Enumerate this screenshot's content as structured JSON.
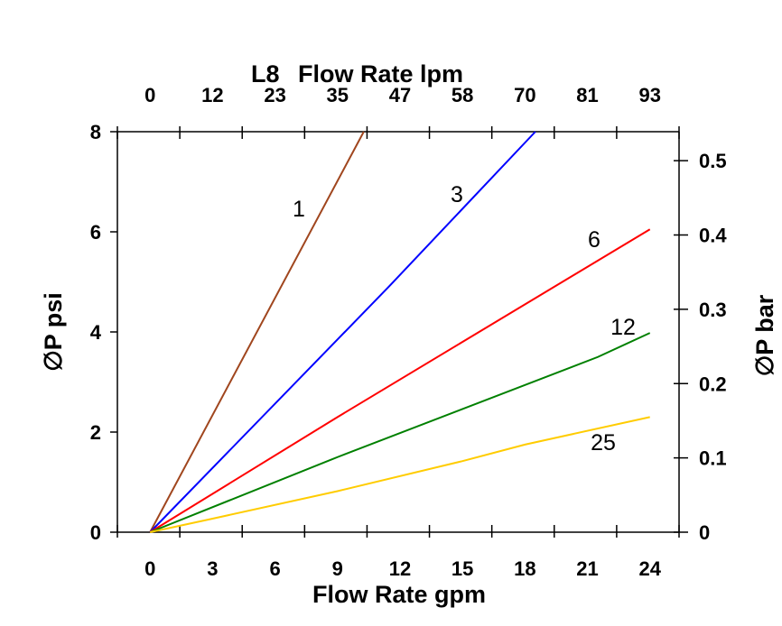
{
  "chart_data": {
    "type": "line",
    "title": "L8",
    "xlabel": "Flow Rate gpm",
    "x2label": "Flow Rate lpm",
    "ylabel": "∅P psi",
    "y2label": "∅P bar",
    "xlim": [
      -1.57,
      25.4
    ],
    "ylim": [
      0,
      8
    ],
    "y2lim": [
      0,
      0.539
    ],
    "x_ticks": [
      "0",
      "3",
      "6",
      "9",
      "12",
      "15",
      "18",
      "21",
      "24"
    ],
    "x_tick_values": [
      0,
      3,
      6,
      9,
      12,
      15,
      18,
      21,
      24
    ],
    "x2_ticks": [
      "0",
      "12",
      "23",
      "35",
      "47",
      "58",
      "70",
      "81",
      "93"
    ],
    "y_ticks": [
      "0",
      "2",
      "4",
      "6",
      "8"
    ],
    "y_tick_values": [
      0,
      2,
      4,
      6,
      8
    ],
    "y2_ticks": [
      "0",
      "0.1",
      "0.2",
      "0.3",
      "0.4",
      "0.5"
    ],
    "y2_tick_values": [
      0,
      0.1,
      0.2,
      0.3,
      0.4,
      0.5
    ],
    "grid": false,
    "series": [
      {
        "name": "1",
        "color": "#a0461e",
        "x": [
          0,
          10.26
        ],
        "y": [
          0,
          8
        ]
      },
      {
        "name": "3",
        "color": "#0000ff",
        "x": [
          0,
          9,
          11.5,
          18.5
        ],
        "y": [
          0,
          3.85,
          4.92,
          8
        ]
      },
      {
        "name": "6",
        "color": "#ff0000",
        "x": [
          0,
          9,
          24
        ],
        "y": [
          0,
          2.3,
          6.05
        ]
      },
      {
        "name": "12",
        "color": "#008000",
        "x": [
          0,
          9,
          21.5,
          24
        ],
        "y": [
          0,
          1.5,
          3.5,
          3.98
        ]
      },
      {
        "name": "25",
        "color": "#ffcc00",
        "x": [
          0,
          3,
          9,
          15,
          18,
          24
        ],
        "y": [
          0,
          0.27,
          0.82,
          1.42,
          1.75,
          2.3
        ]
      }
    ]
  }
}
